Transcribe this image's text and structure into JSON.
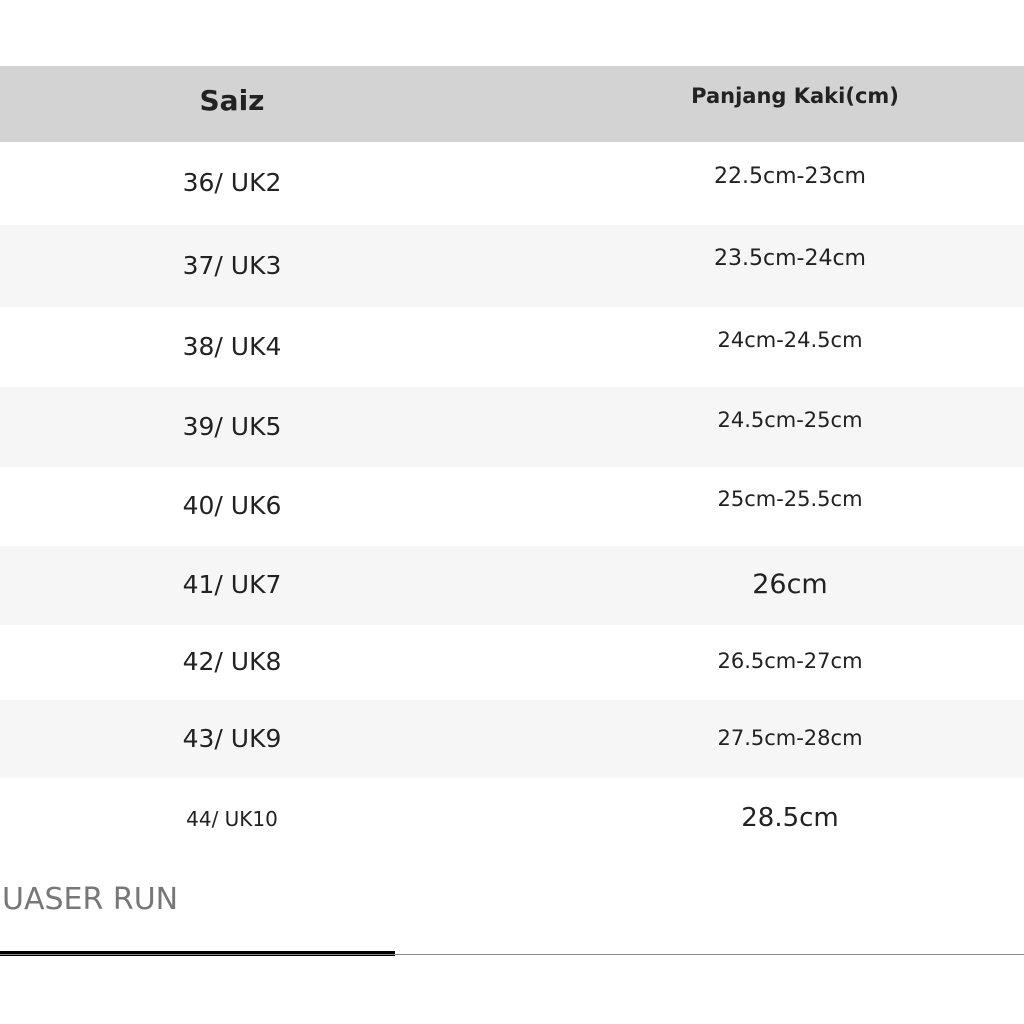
{
  "table": {
    "headers": [
      "Saiz",
      "Panjang Kaki(cm)"
    ],
    "rows": [
      [
        "36/ UK2",
        "22.5cm-23cm"
      ],
      [
        "37/ UK3",
        "23.5cm-24cm"
      ],
      [
        "38/ UK4",
        "24cm-24.5cm"
      ],
      [
        "39/ UK5",
        "24.5cm-25cm"
      ],
      [
        "40/ UK6",
        "25cm-25.5cm"
      ],
      [
        "41/ UK7",
        "26cm"
      ],
      [
        "42/ UK8",
        "26.5cm-27cm"
      ],
      [
        "43/ UK9",
        "27.5cm-28cm"
      ],
      [
        "44/ UK10",
        "28.5cm"
      ]
    ]
  },
  "footer": {
    "text": "UASER RUN"
  },
  "colors": {
    "header_bg": "#d3d3d3",
    "alt_row_bg": "#f6f6f6"
  }
}
